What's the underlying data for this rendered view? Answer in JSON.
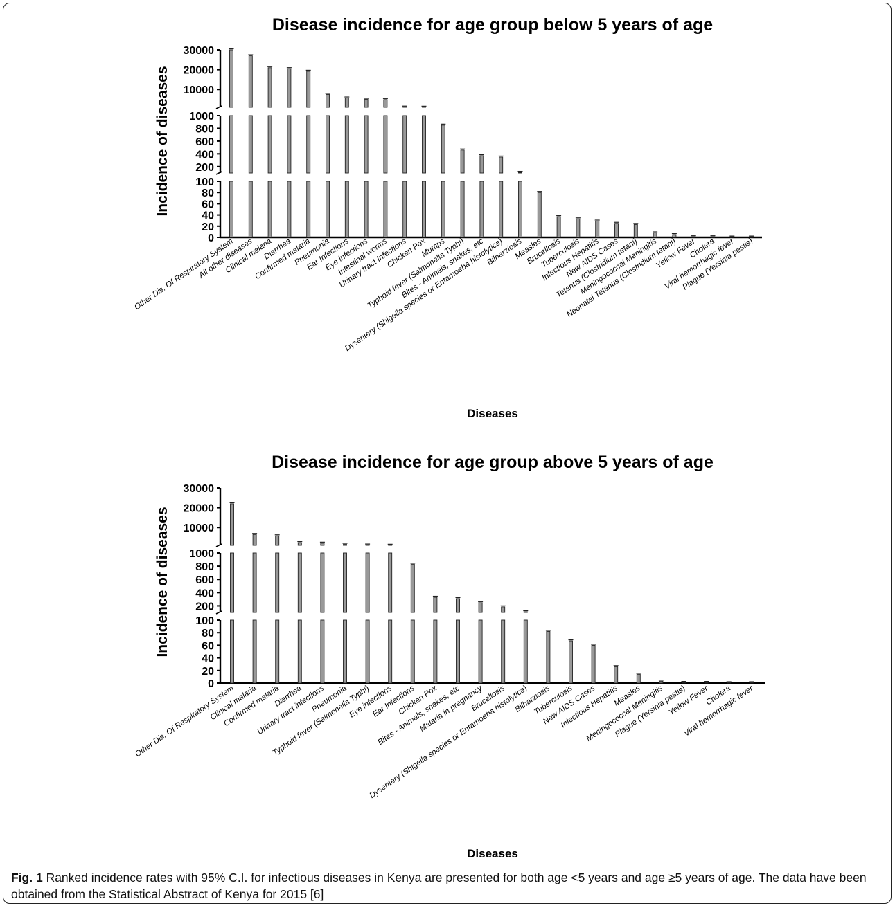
{
  "caption": {
    "label": "Fig. 1",
    "text": " Ranked incidence rates with 95% C.I. for infectious diseases in Kenya are presented for both age <5 years and age ≥5 years of age. The data have been obtained from the Statistical Abstract of Kenya for 2015 [6]"
  },
  "colors": {
    "bar_fill": "#999999",
    "bar_stroke": "#222222",
    "axis": "#000000"
  },
  "chart_data": [
    {
      "type": "bar",
      "title": "Disease incidence for age group below 5 years of age",
      "xlabel": "Diseases",
      "ylabel": "Incidence of diseases",
      "grid": false,
      "legend": "none",
      "y_axis": "broken",
      "y_segments": [
        {
          "range": [
            0,
            100
          ],
          "ticks": [
            0,
            20,
            40,
            60,
            80,
            100
          ],
          "tick_labels": [
            "0",
            "20",
            "40",
            "60",
            "80",
            "100"
          ]
        },
        {
          "range": [
            100,
            1000
          ],
          "ticks": [
            200,
            400,
            600,
            800,
            1000
          ],
          "tick_labels": [
            "200",
            "400",
            "600",
            "800",
            "1000"
          ]
        },
        {
          "range": [
            1000,
            30000
          ],
          "ticks": [
            10000,
            20000,
            30000
          ],
          "tick_labels": [
            "10000",
            "20000",
            "30000"
          ]
        }
      ],
      "categories": [
        "Other Dis. Of Respiratory System",
        "All other diseases",
        "Clinical malaria",
        "Diarrhea",
        "Confirmed malaria",
        "Pneumonia",
        "Ear Infections",
        "Eye infections",
        "Intestinal worms",
        "Urinary tract Infections",
        "Chicken Pox",
        "Mumps",
        "Typhoid fever (Salmonella Typhi)",
        "Bites - Animals, snakes, etc",
        "Dysentery (Shigella species or Entamoeba histolytica)",
        "Bilharziosis",
        "Measles",
        "Brucellosis",
        "Tuberculosis",
        "Infectious Hepatitis",
        "New AIDS Cases",
        "Tetanus (Clostridium tetani)",
        "Meningococcal Meningitis",
        "Neonatal Tetanus (Clostridium tetani)",
        "Yellow Fever",
        "Cholera",
        "Viral hemorrhagic fever",
        "Plague (Yersinia pestis)"
      ],
      "values": [
        30000,
        27000,
        21000,
        20500,
        19200,
        7500,
        5700,
        5000,
        4900,
        1100,
        1050,
        850,
        460,
        370,
        350,
        110,
        80,
        37,
        33,
        29,
        25,
        23,
        8,
        5,
        1,
        1,
        0.5,
        0.5
      ]
    },
    {
      "type": "bar",
      "title": "Disease incidence for age group above 5 years of age",
      "xlabel": "Diseases",
      "ylabel": "Incidence of diseases",
      "grid": false,
      "legend": "none",
      "y_axis": "broken",
      "y_segments": [
        {
          "range": [
            0,
            100
          ],
          "ticks": [
            0,
            20,
            40,
            60,
            80,
            100
          ],
          "tick_labels": [
            "0",
            "20",
            "40",
            "60",
            "80",
            "100"
          ]
        },
        {
          "range": [
            100,
            1000
          ],
          "ticks": [
            200,
            400,
            600,
            800,
            1000
          ],
          "tick_labels": [
            "200",
            "400",
            "600",
            "800",
            "1000"
          ]
        },
        {
          "range": [
            1000,
            30000
          ],
          "ticks": [
            10000,
            20000,
            30000
          ],
          "tick_labels": [
            "10000",
            "20000",
            "30000"
          ]
        }
      ],
      "categories": [
        "Other Dis. Of Respiratory System",
        "Clinical malaria",
        "Confirmed malaria",
        "Diarrhea",
        "Urinary tract infections",
        "Pneumonia",
        "Typhoid fever (Salmonella Typhi)",
        "Eye infections",
        "Ear Infections",
        "Chicken Pox",
        "Bites - Animals, snakes, etc",
        "Malaria in pregnancy",
        "Brucellosis",
        "Dysentery (Shigella species or Entamoeba histolytica)",
        "Bilharziosis",
        "Tuberculosis",
        "New AIDS Cases",
        "Infectious Hepatitis",
        "Measles",
        "Meningococcal Meningitis",
        "Plague (Yersinia pestis)",
        "Yellow Fever",
        "Cholera",
        "Viral hemorrhagic fever"
      ],
      "values": [
        22000,
        6500,
        5800,
        2400,
        2100,
        1500,
        1150,
        1050,
        830,
        330,
        310,
        245,
        185,
        110,
        82,
        67,
        60,
        26,
        14,
        3,
        1,
        1,
        0.5,
        0.5
      ]
    }
  ]
}
